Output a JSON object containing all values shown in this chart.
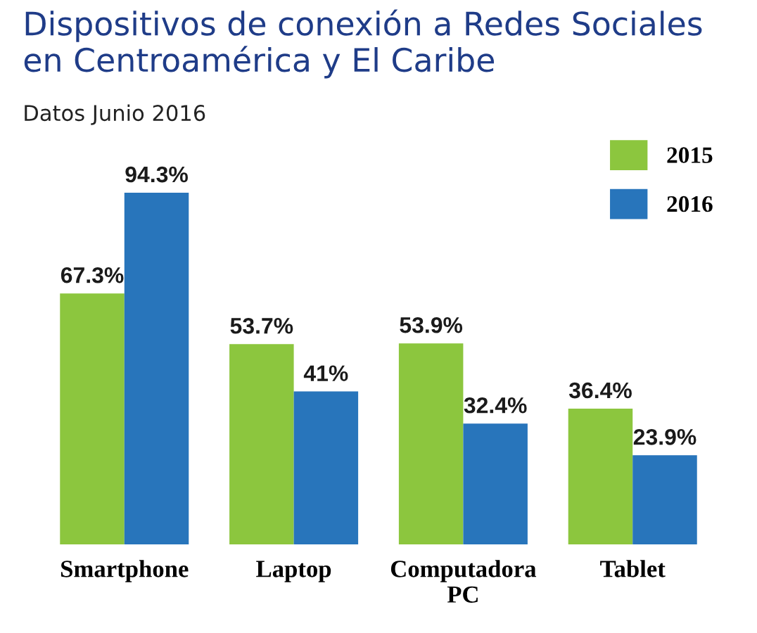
{
  "chart_data": {
    "type": "bar",
    "title": "Dispositivos de conexión a Redes Sociales\nen Centroamérica y El Caribe",
    "subtitle": "Datos Junio 2016",
    "categories": [
      "Smartphone",
      "Laptop",
      "Computadora\nPC",
      "Tablet"
    ],
    "series": [
      {
        "name": "2015",
        "color": "#8cc63e",
        "values": [
          67.3,
          53.7,
          53.9,
          36.4
        ],
        "value_labels": [
          "67.3%",
          "53.7%",
          "53.9%",
          "36.4%"
        ]
      },
      {
        "name": "2016",
        "color": "#2875bb",
        "values": [
          94.3,
          41,
          32.4,
          23.9
        ],
        "value_labels": [
          "94.3%",
          "41%",
          "32.4%",
          "23.9%"
        ]
      }
    ],
    "legend": "top right",
    "grid": false
  }
}
